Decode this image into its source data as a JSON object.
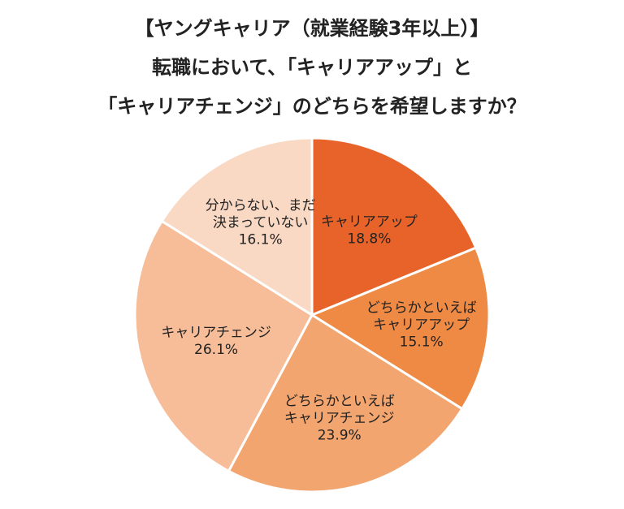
{
  "chart_data": {
    "type": "pie",
    "title_lines": [
      "【ヤングキャリア（就業経験3年以上）】",
      "転職において、「キャリアアップ」と",
      "「キャリアチェンジ」のどちらを希望しますか？"
    ],
    "slices": [
      {
        "label_lines": [
          "キャリアアップ"
        ],
        "value": 18.8,
        "value_text": "18.8%",
        "color": "#e8632a"
      },
      {
        "label_lines": [
          "どちらかといえば",
          "キャリアアップ"
        ],
        "value": 15.1,
        "value_text": "15.1%",
        "color": "#ef8a45"
      },
      {
        "label_lines": [
          "どちらかといえば",
          "キャリアチェンジ"
        ],
        "value": 23.9,
        "value_text": "23.9%",
        "color": "#f3a56f"
      },
      {
        "label_lines": [
          "キャリアチェンジ"
        ],
        "value": 26.1,
        "value_text": "26.1%",
        "color": "#f6bd98"
      },
      {
        "label_lines": [
          "分からない、まだ",
          "決まっていない"
        ],
        "value": 16.1,
        "value_text": "16.1%",
        "color": "#f9d9c4"
      }
    ]
  }
}
